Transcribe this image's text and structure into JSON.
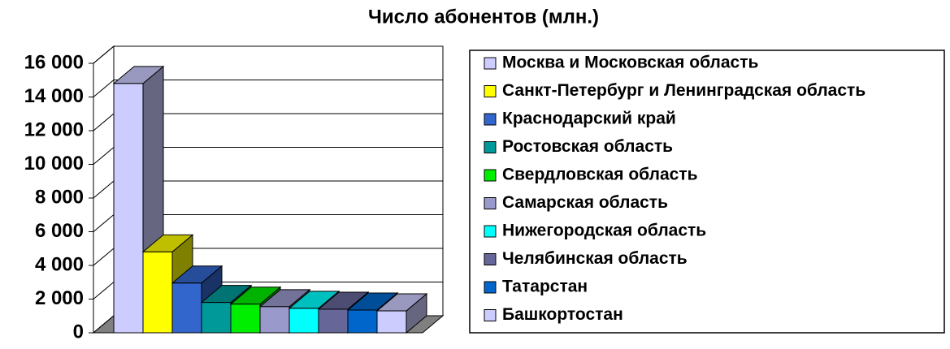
{
  "chart_data": {
    "type": "bar",
    "title": "Число абонентов (млн.)",
    "series": [
      {
        "name": "Москва и Московская область",
        "color": "#ccccff",
        "values": [
          14800
        ]
      },
      {
        "name": "Санкт-Петербург и Ленинградская область",
        "color": "#ffff00",
        "values": [
          4800
        ]
      },
      {
        "name": "Краснодарский край",
        "color": "#3366cc",
        "values": [
          2950
        ]
      },
      {
        "name": "Ростовская область",
        "color": "#009999",
        "values": [
          1800
        ]
      },
      {
        "name": "Свердловская область",
        "color": "#00ee00",
        "values": [
          1700
        ]
      },
      {
        "name": "Самарская область",
        "color": "#9999cc",
        "values": [
          1550
        ]
      },
      {
        "name": "Нижегородская область",
        "color": "#00ffff",
        "values": [
          1450
        ]
      },
      {
        "name": "Челябинская область",
        "color": "#666699",
        "values": [
          1400
        ]
      },
      {
        "name": "Татарстан",
        "color": "#0066cc",
        "values": [
          1350
        ]
      },
      {
        "name": "Башкортостан",
        "color": "#ccccff",
        "values": [
          1300
        ]
      }
    ],
    "ylim": [
      0,
      16000
    ],
    "yticks": [
      0,
      {
        "value": 2000,
        "label": "2 000"
      },
      {
        "value": 4000,
        "label": "4 000"
      },
      {
        "value": 6000,
        "label": "6 000"
      },
      {
        "value": 8000,
        "label": "8 000"
      },
      {
        "value": 10000,
        "label": "10 000"
      },
      {
        "value": 12000,
        "label": "12 000"
      },
      {
        "value": 14000,
        "label": "14 000"
      },
      {
        "value": 16000,
        "label": "16 000"
      }
    ],
    "grid": true,
    "legend": "right"
  }
}
